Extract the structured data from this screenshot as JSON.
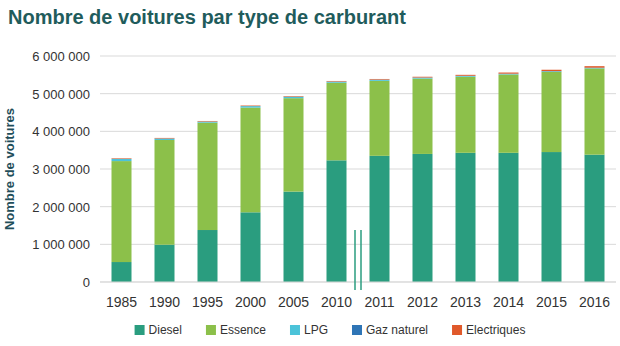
{
  "chart_data": {
    "type": "bar",
    "stacked": true,
    "grid": true,
    "legend": "bottom",
    "title": "Nombre de voitures par type de carburant",
    "y_label": "Nombre de voitures",
    "categories": [
      "1985",
      "1990",
      "1995",
      "2000",
      "2005",
      "2010",
      "2011",
      "2012",
      "2013",
      "2014",
      "2015",
      "2016"
    ],
    "ylim": [
      0,
      6000000
    ],
    "yticks": [
      0,
      {
        "value": 1000000,
        "label": "1 000 000"
      },
      {
        "value": 2000000,
        "label": "2 000 000"
      },
      {
        "value": 3000000,
        "label": "3 000 000"
      },
      {
        "value": 4000000,
        "label": "4 000 000"
      },
      {
        "value": 5000000,
        "label": "5 000 000"
      },
      {
        "value": 6000000,
        "label": "6 000 000"
      }
    ],
    "series": [
      {
        "name": "Diesel",
        "color": "#2a9d7f",
        "values": [
          530000,
          990000,
          1380000,
          1850000,
          2400000,
          3230000,
          3350000,
          3400000,
          3430000,
          3430000,
          3450000,
          3380000
        ]
      },
      {
        "name": "Essence",
        "color": "#8cc04a",
        "values": [
          2680000,
          2780000,
          2850000,
          2780000,
          2480000,
          2060000,
          1990000,
          2000000,
          2020000,
          2080000,
          2130000,
          2290000
        ]
      },
      {
        "name": "LPG",
        "color": "#4cc3d9",
        "values": [
          60000,
          40000,
          30000,
          40000,
          40000,
          30000,
          30000,
          25000,
          20000,
          15000,
          12000,
          10000
        ]
      },
      {
        "name": "Gaz naturel",
        "color": "#2e75b6",
        "values": [
          0,
          0,
          0,
          0,
          0,
          2000,
          3000,
          4000,
          5000,
          6000,
          8000,
          10000
        ]
      },
      {
        "name": "Electriques",
        "color": "#e0592a",
        "values": [
          15000,
          15000,
          15000,
          15000,
          15000,
          15000,
          17000,
          20000,
          25000,
          30000,
          35000,
          40000
        ]
      }
    ]
  }
}
